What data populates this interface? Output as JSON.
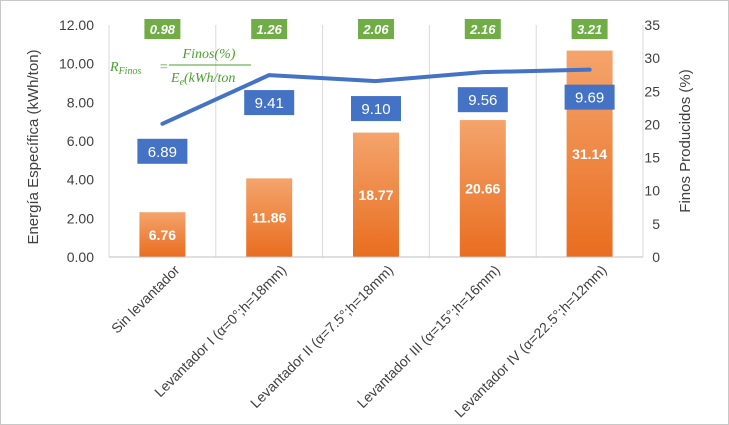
{
  "chart_data": {
    "type": "bar",
    "categories": [
      "Sin levantador",
      "Levantador I (α=0°;h=18mm)",
      "Levantador II (α=7.5°;h=18mm)",
      "Levantador III (α=15°;h=16mm)",
      "Levantador IV (α=22.5°;h=12mm)"
    ],
    "series": [
      {
        "type": "bar",
        "axis": "right",
        "values": [
          6.76,
          11.86,
          18.77,
          20.66,
          31.14
        ],
        "labels": [
          "6.76",
          "11.86",
          "18.77",
          "20.66",
          "31.14"
        ],
        "color": "#ed7d31"
      },
      {
        "type": "line",
        "axis": "left",
        "values": [
          6.89,
          9.41,
          9.1,
          9.56,
          9.69
        ],
        "labels": [
          "6.89",
          "9.41",
          "9.10",
          "9.56",
          "9.69"
        ],
        "color": "#4472c4"
      }
    ],
    "ratio_labels": [
      "0.98",
      "1.26",
      "2.06",
      "2.16",
      "3.21"
    ],
    "ratio_color": "#70ad47",
    "ylabel": "Energía Específica (kWh/ton)",
    "y2label": "Finos Producidos (%)",
    "ylim": [
      0,
      12
    ],
    "y2lim": [
      0,
      35
    ],
    "yticks": [
      "0.00",
      "2.00",
      "4.00",
      "6.00",
      "8.00",
      "10.00",
      "12.00"
    ],
    "y2ticks": [
      "0",
      "5",
      "10",
      "15",
      "20",
      "25",
      "30",
      "35"
    ],
    "grid": "vertical",
    "annotation": {
      "lhs": "R",
      "lhs_sub": "Finos",
      "equals": "=",
      "numerator": "Finos(%)",
      "denominator_main": "E",
      "denominator_sub": "e",
      "denominator_rest": "(kWh/ton"
    }
  }
}
